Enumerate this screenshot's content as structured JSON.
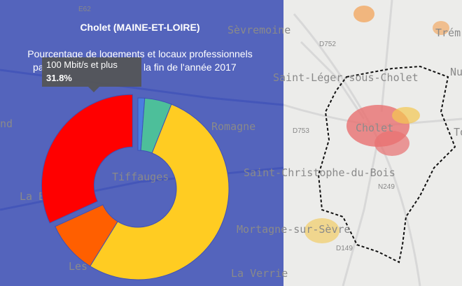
{
  "chart_data": {
    "type": "pie",
    "title": "Cholet (MAINE-ET-LOIRE)",
    "subtitle_lines": [
      "Pourcentage de logements et locaux professionnels",
      "pa",
      "la fin de l'année 2017"
    ],
    "categories": [
      null,
      null,
      null,
      null,
      "100 Mbit/s et plus"
    ],
    "values": [
      1.2,
      4.8,
      52.8,
      9.4,
      31.8
    ],
    "value_labels": [
      null,
      null,
      null,
      null,
      "31.8%"
    ],
    "colors": [
      "#4a7ee0",
      "#4dbf9a",
      "#ffcc22",
      "#ff5f00",
      "#ff0000"
    ],
    "exploded": 4
  },
  "map": {
    "labels": [
      "Sèvremoine",
      "Trém",
      "Saint-Léger-sous-Cholet",
      "Nu",
      "Cholet",
      "Romagne",
      "To",
      "Saint-Christophe-du-Bois",
      "Tiffauges",
      "La B",
      "Mortagne-sur-Sèvre",
      "Les",
      "La Verrie",
      "nd",
      "D752",
      "D753",
      "N249",
      "D149",
      "E62"
    ]
  }
}
